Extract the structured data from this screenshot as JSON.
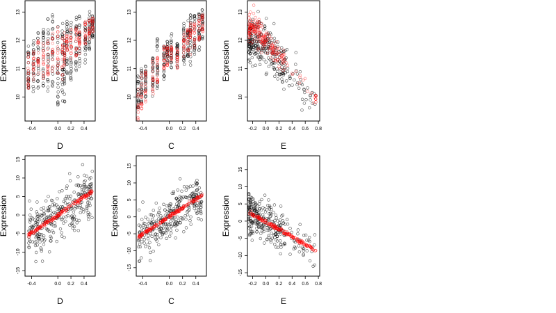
{
  "chart_data": [
    {
      "type": "scatter",
      "xlabel": "D",
      "ylabel": "Expression",
      "xlim": [
        -0.5,
        0.57
      ],
      "ylim": [
        9.15,
        13.4
      ],
      "xticks": [
        -0.4,
        0.0,
        0.2,
        0.4
      ],
      "xtick_labels": [
        "-0.4",
        "0.0",
        "0.2",
        "0.4"
      ],
      "yticks": [
        10,
        11,
        12,
        13
      ],
      "ytick_labels": [
        "10",
        "11",
        "12",
        "13"
      ],
      "groups_x": [
        -0.45,
        -0.37,
        -0.3,
        -0.22,
        -0.15,
        -0.08,
        0.0,
        0.07,
        0.1,
        0.14,
        0.2,
        0.28,
        0.33,
        0.42,
        0.48,
        0.53
      ],
      "observed_range": [
        [
          10.0,
          11.8
        ],
        [
          9.6,
          12.0
        ],
        [
          10.3,
          12.3
        ],
        [
          10.2,
          12.5
        ],
        [
          10.2,
          12.8
        ],
        [
          10.3,
          13.0
        ],
        [
          9.7,
          12.7
        ],
        [
          9.8,
          12.6
        ],
        [
          9.7,
          12.1
        ],
        [
          10.8,
          12.9
        ],
        [
          10.6,
          12.9
        ],
        [
          10.9,
          12.9
        ],
        [
          11.0,
          12.9
        ],
        [
          11.2,
          12.7
        ],
        [
          11.6,
          13.1
        ],
        [
          12.1,
          12.9
        ]
      ],
      "fitted_range": [
        [
          10.3,
          11.6
        ],
        [
          10.6,
          11.7
        ],
        [
          10.8,
          12.0
        ],
        [
          10.6,
          11.9
        ],
        [
          10.7,
          12.1
        ],
        [
          10.9,
          12.3
        ],
        [
          10.8,
          12.5
        ],
        [
          10.6,
          12.1
        ],
        [
          11.0,
          12.3
        ],
        [
          11.6,
          12.2
        ],
        [
          11.3,
          12.5
        ],
        [
          11.4,
          12.5
        ],
        [
          11.5,
          12.4
        ],
        [
          11.8,
          12.7
        ],
        [
          12.0,
          12.8
        ],
        [
          12.3,
          12.8
        ]
      ],
      "series": [
        {
          "name": "",
          "color": "#000000",
          "marker": "open-circle"
        },
        {
          "name": "",
          "color": "#ff0000",
          "marker": "open-circle"
        }
      ],
      "grid": false
    },
    {
      "type": "scatter",
      "xlabel": "C",
      "ylabel": "Expression",
      "xlim": [
        -0.5,
        0.56
      ],
      "ylim": [
        9.15,
        13.4
      ],
      "xticks": [
        -0.4,
        0.0,
        0.2,
        0.4
      ],
      "xtick_labels": [
        "-0.4",
        "0.0",
        "0.2",
        "0.4"
      ],
      "yticks": [
        10,
        11,
        12,
        13
      ],
      "ytick_labels": [
        "10",
        "11",
        "12",
        "13"
      ],
      "groups_x": [
        -0.47,
        -0.42,
        -0.36,
        -0.25,
        -0.18,
        -0.08,
        -0.03,
        0.03,
        0.12,
        0.22,
        0.28,
        0.32,
        0.38,
        0.45,
        0.5
      ],
      "observed_range": [
        [
          9.6,
          10.8
        ],
        [
          9.7,
          11.0
        ],
        [
          10.0,
          11.2
        ],
        [
          10.0,
          11.5
        ],
        [
          10.3,
          12.3
        ],
        [
          10.6,
          11.8
        ],
        [
          11.2,
          12.0
        ],
        [
          11.0,
          12.3
        ],
        [
          11.0,
          12.0
        ],
        [
          11.0,
          12.6
        ],
        [
          11.3,
          12.9
        ],
        [
          11.1,
          12.9
        ],
        [
          11.5,
          12.9
        ],
        [
          11.6,
          13.0
        ],
        [
          12.0,
          13.1
        ]
      ],
      "fitted_range": [
        [
          9.0,
          10.3
        ],
        [
          9.5,
          10.9
        ],
        [
          9.8,
          11.1
        ],
        [
          10.1,
          11.5
        ],
        [
          10.5,
          11.4
        ],
        [
          11.0,
          11.8
        ],
        [
          11.1,
          11.8
        ],
        [
          11.2,
          11.8
        ],
        [
          11.0,
          11.8
        ],
        [
          11.3,
          12.3
        ],
        [
          11.6,
          12.5
        ],
        [
          11.5,
          12.6
        ],
        [
          11.7,
          12.6
        ],
        [
          12.0,
          12.9
        ],
        [
          12.3,
          12.9
        ]
      ],
      "series": [
        {
          "name": "",
          "color": "#000000",
          "marker": "open-circle"
        },
        {
          "name": "",
          "color": "#ff0000",
          "marker": "open-circle"
        }
      ],
      "grid": false
    },
    {
      "type": "scatter",
      "xlabel": "E",
      "ylabel": "Expression",
      "xlim": [
        -0.28,
        0.82
      ],
      "ylim": [
        9.15,
        13.4
      ],
      "xticks": [
        -0.2,
        0.0,
        0.2,
        0.4,
        0.6,
        0.8
      ],
      "xtick_labels": [
        "-0.2",
        "0.0",
        "0.2",
        "0.4",
        "0.6",
        "0.8"
      ],
      "yticks": [
        10,
        11,
        12,
        13
      ],
      "ytick_labels": [
        "10",
        "11",
        "12",
        "13"
      ],
      "cloud_x_range": [
        -0.26,
        0.3
      ],
      "observed_trend": [
        [
          -0.25,
          12.0
        ],
        [
          0.0,
          11.8
        ],
        [
          0.3,
          11.0
        ],
        [
          0.76,
          10.0
        ]
      ],
      "fitted_trend": [
        [
          -0.25,
          12.5
        ],
        [
          0.0,
          12.0
        ],
        [
          0.3,
          11.2
        ],
        [
          0.76,
          10.0
        ]
      ],
      "series": [
        {
          "name": "",
          "color": "#000000",
          "marker": "open-circle"
        },
        {
          "name": "",
          "color": "#ff0000",
          "marker": "open-circle"
        }
      ],
      "grid": false
    },
    {
      "type": "scatter",
      "xlabel": "D",
      "ylabel": "Expression",
      "xlim": [
        -0.5,
        0.57
      ],
      "ylim": [
        -16.5,
        16
      ],
      "xticks": [
        -0.4,
        0.0,
        0.2,
        0.4
      ],
      "xtick_labels": [
        "-0.4",
        "0.0",
        "0.2",
        "0.4"
      ],
      "yticks": [
        -15,
        -10,
        -5,
        0,
        5,
        10,
        15
      ],
      "ytick_labels": [
        "-15",
        "-10",
        "-5",
        "0",
        "5",
        "10",
        "15"
      ],
      "fitted_line": [
        [
          -0.45,
          -5.5
        ],
        [
          0.53,
          6.5
        ]
      ],
      "observed_spread": 5.0,
      "series": [
        {
          "name": "",
          "color": "#000000",
          "marker": "open-circle"
        },
        {
          "name": "",
          "color": "#ff0000",
          "marker": "open-circle"
        }
      ],
      "grid": false
    },
    {
      "type": "scatter",
      "xlabel": "C",
      "ylabel": "Expression",
      "xlim": [
        -0.5,
        0.56
      ],
      "ylim": [
        -17.5,
        18
      ],
      "xticks": [
        -0.4,
        0.0,
        0.2,
        0.4
      ],
      "xtick_labels": [
        "-0.4",
        "0.0",
        "0.2",
        "0.4"
      ],
      "yticks": [
        -15,
        -10,
        -5,
        0,
        5,
        10,
        15
      ],
      "ytick_labels": [
        "-15",
        "-10",
        "-5",
        "0",
        "5",
        "10",
        "15"
      ],
      "fitted_line": [
        [
          -0.47,
          -6.0
        ],
        [
          0.5,
          6.5
        ]
      ],
      "observed_spread": 5.0,
      "series": [
        {
          "name": "",
          "color": "#000000",
          "marker": "open-circle"
        },
        {
          "name": "",
          "color": "#ff0000",
          "marker": "open-circle"
        }
      ],
      "grid": false
    },
    {
      "type": "scatter",
      "xlabel": "E",
      "ylabel": "Expression",
      "xlim": [
        -0.28,
        0.82
      ],
      "ylim": [
        -16,
        19
      ],
      "xticks": [
        -0.2,
        0.0,
        0.2,
        0.4,
        0.6,
        0.8
      ],
      "xtick_labels": [
        "-0.2",
        "0.0",
        "0.2",
        "0.4",
        "0.6",
        "0.8"
      ],
      "yticks": [
        -15,
        -10,
        -5,
        0,
        5,
        10,
        15
      ],
      "ytick_labels": [
        "-15",
        "-10",
        "-5",
        "0",
        "5",
        "10",
        "15"
      ],
      "fitted_line": [
        [
          -0.25,
          2.5
        ],
        [
          0.76,
          -8.5
        ]
      ],
      "cloud_x_range": [
        -0.26,
        0.3
      ],
      "observed_spread": 4.0,
      "series": [
        {
          "name": "",
          "color": "#000000",
          "marker": "open-circle"
        },
        {
          "name": "",
          "color": "#ff0000",
          "marker": "open-circle"
        }
      ],
      "grid": false
    }
  ]
}
